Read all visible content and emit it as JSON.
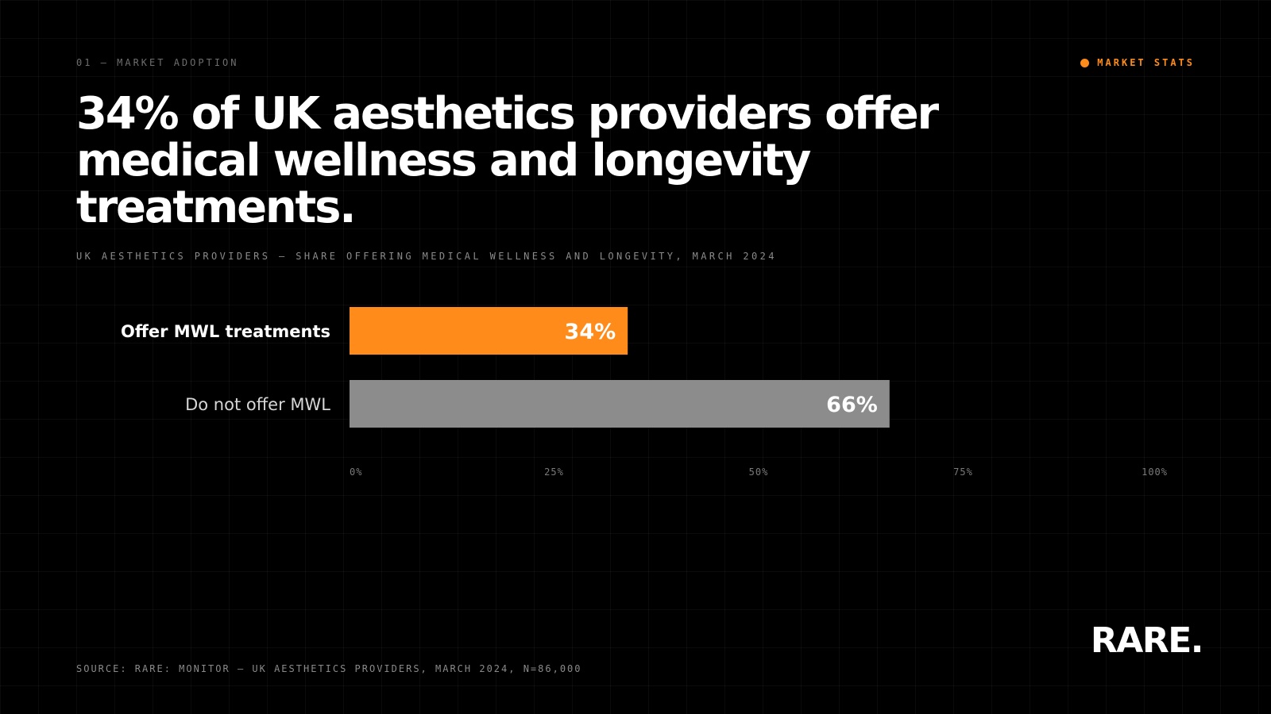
{
  "header": {
    "eyebrow": "01 — MARKET ADOPTION",
    "badge": {
      "label": "MARKET STATS",
      "dot_color": "#ff8c1a"
    }
  },
  "headline": "34% of UK aesthetics providers offer medical wellness and longevity treatments.",
  "chart_data": {
    "type": "bar",
    "orientation": "horizontal",
    "subtitle": "UK AESTHETICS PROVIDERS — SHARE OFFERING MEDICAL WELLNESS AND LONGEVITY, MARCH 2024",
    "categories": [
      "Offer MWL treatments",
      "Do not offer MWL"
    ],
    "values": [
      34,
      66
    ],
    "value_labels": [
      "34%",
      "66%"
    ],
    "colors": [
      "#ff8c1a",
      "#8c8c8c"
    ],
    "xlim": [
      0,
      100
    ],
    "x_ticks": [
      {
        "value": 0,
        "label": "0%"
      },
      {
        "value": 25,
        "label": "25%"
      },
      {
        "value": 50,
        "label": "50%"
      },
      {
        "value": 75,
        "label": "75%"
      },
      {
        "value": 100,
        "label": "100%"
      }
    ],
    "grid": true
  },
  "footer": {
    "source": "SOURCE: RARE: MONITOR — UK AESTHETICS PROVIDERS, MARCH 2024, N=86,000",
    "logo": "RARE."
  }
}
